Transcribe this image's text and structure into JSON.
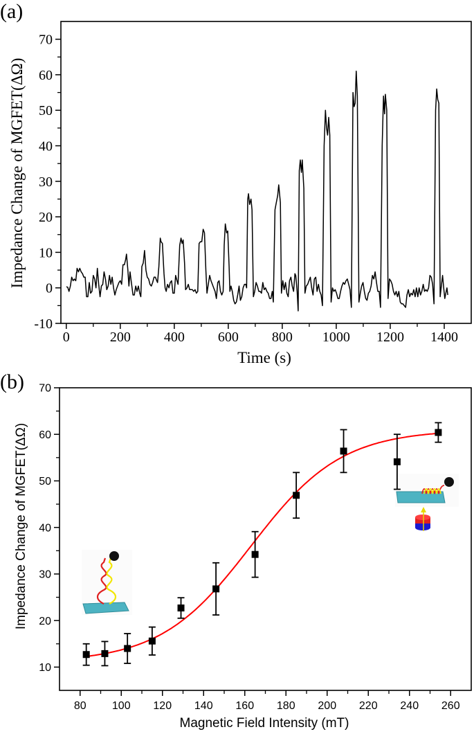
{
  "chart_data": [
    {
      "panel_label": "(a)",
      "type": "line",
      "xlabel": "Time (s)",
      "ylabel": "Impedance Change of MGFET(ΔΩ)",
      "xlim": [
        -20,
        1500
      ],
      "ylim": [
        -10,
        75
      ],
      "xticks": [
        0,
        200,
        400,
        600,
        800,
        1000,
        1200,
        1400
      ],
      "yticks": [
        -10,
        0,
        10,
        20,
        30,
        40,
        50,
        60,
        70
      ],
      "grid": false,
      "line_color": "#000000",
      "points": [
        [
          0,
          0.3
        ],
        [
          5,
          0.2
        ],
        [
          10,
          -1
        ],
        [
          15,
          0.5
        ],
        [
          20,
          3
        ],
        [
          25,
          2
        ],
        [
          30,
          2.5
        ],
        [
          35,
          2
        ],
        [
          40,
          5.5
        ],
        [
          45,
          4.5
        ],
        [
          50,
          5.5
        ],
        [
          55,
          4.5
        ],
        [
          60,
          4
        ],
        [
          65,
          3
        ],
        [
          70,
          3
        ],
        [
          75,
          -2.5
        ],
        [
          80,
          -2.5
        ],
        [
          85,
          1.5
        ],
        [
          90,
          -1.5
        ],
        [
          95,
          -1
        ],
        [
          100,
          3.5
        ],
        [
          105,
          2.5
        ],
        [
          110,
          0
        ],
        [
          115,
          5.5
        ],
        [
          120,
          1
        ],
        [
          125,
          -2.5
        ],
        [
          130,
          0.5
        ],
        [
          135,
          1
        ],
        [
          140,
          4.5
        ],
        [
          145,
          2.5
        ],
        [
          150,
          -0.5
        ],
        [
          155,
          0.5
        ],
        [
          160,
          3.5
        ],
        [
          165,
          1
        ],
        [
          170,
          3
        ],
        [
          175,
          0
        ],
        [
          180,
          -2
        ],
        [
          185,
          -0.5
        ],
        [
          190,
          0.5
        ],
        [
          195,
          1.5
        ],
        [
          200,
          2
        ],
        [
          205,
          1
        ],
        [
          210,
          6.5
        ],
        [
          215,
          6.5
        ],
        [
          220,
          8
        ],
        [
          223,
          9.5
        ],
        [
          228,
          5
        ],
        [
          232,
          0.5
        ],
        [
          236,
          4.5
        ],
        [
          242,
          1
        ],
        [
          247,
          -2
        ],
        [
          252,
          -2
        ],
        [
          257,
          0.5
        ],
        [
          262,
          -1
        ],
        [
          267,
          0.5
        ],
        [
          272,
          -1.5
        ],
        [
          276,
          -2.5
        ],
        [
          280,
          6
        ],
        [
          285,
          7
        ],
        [
          290,
          10.5
        ],
        [
          295,
          5
        ],
        [
          300,
          3
        ],
        [
          305,
          2.5
        ],
        [
          310,
          1
        ],
        [
          315,
          0.5
        ],
        [
          320,
          1.5
        ],
        [
          325,
          3
        ],
        [
          330,
          3
        ],
        [
          335,
          2
        ],
        [
          338,
          1.5
        ],
        [
          343,
          6
        ],
        [
          348,
          14
        ],
        [
          351,
          13
        ],
        [
          356,
          12.5
        ],
        [
          362,
          4
        ],
        [
          366,
          0
        ],
        [
          370,
          -1
        ],
        [
          375,
          1
        ],
        [
          380,
          0
        ],
        [
          385,
          1.5
        ],
        [
          390,
          2
        ],
        [
          395,
          -1.5
        ],
        [
          400,
          -1.5
        ],
        [
          405,
          3.5
        ],
        [
          410,
          2
        ],
        [
          414,
          1
        ],
        [
          420,
          12
        ],
        [
          425,
          14
        ],
        [
          429,
          12.5
        ],
        [
          433,
          13.5
        ],
        [
          438,
          7
        ],
        [
          442,
          -0.5
        ],
        [
          447,
          0
        ],
        [
          452,
          1
        ],
        [
          457,
          -0.5
        ],
        [
          462,
          -0.5
        ],
        [
          467,
          -0.5
        ],
        [
          472,
          -1
        ],
        [
          477,
          -0.5
        ],
        [
          482,
          -1.5
        ],
        [
          487,
          -1
        ],
        [
          492,
          12.5
        ],
        [
          497,
          13
        ],
        [
          502,
          13
        ],
        [
          507,
          16.5
        ],
        [
          512,
          15.5
        ],
        [
          517,
          5
        ],
        [
          521,
          -1.5
        ],
        [
          526,
          1
        ],
        [
          531,
          3.5
        ],
        [
          536,
          2
        ],
        [
          541,
          1
        ],
        [
          546,
          0
        ],
        [
          551,
          -1
        ],
        [
          556,
          -3
        ],
        [
          561,
          1.5
        ],
        [
          566,
          2
        ],
        [
          571,
          -1
        ],
        [
          576,
          -2
        ],
        [
          581,
          -1
        ],
        [
          585,
          12
        ],
        [
          589,
          18
        ],
        [
          594,
          15.5
        ],
        [
          598,
          16
        ],
        [
          603,
          6
        ],
        [
          606,
          -1
        ],
        [
          610,
          0.5
        ],
        [
          615,
          -1
        ],
        [
          620,
          -3.5
        ],
        [
          625,
          -4.5
        ],
        [
          630,
          -4
        ],
        [
          635,
          -2
        ],
        [
          640,
          0.5
        ],
        [
          645,
          -3.5
        ],
        [
          650,
          -2.5
        ],
        [
          655,
          0
        ],
        [
          660,
          1
        ],
        [
          665,
          1
        ],
        [
          668,
          0
        ],
        [
          672,
          25
        ],
        [
          675,
          26.5
        ],
        [
          679,
          23.5
        ],
        [
          684,
          25
        ],
        [
          688,
          22
        ],
        [
          693,
          -2.5
        ],
        [
          698,
          -1
        ],
        [
          703,
          1.5
        ],
        [
          708,
          0.5
        ],
        [
          713,
          -1
        ],
        [
          718,
          -1
        ],
        [
          723,
          -1.5
        ],
        [
          728,
          1.5
        ],
        [
          733,
          -0.5
        ],
        [
          738,
          0
        ],
        [
          743,
          -1
        ],
        [
          748,
          -1.5
        ],
        [
          753,
          -3
        ],
        [
          758,
          -3
        ],
        [
          763,
          -1
        ],
        [
          767,
          -4
        ],
        [
          773,
          22
        ],
        [
          778,
          24
        ],
        [
          783,
          26
        ],
        [
          787,
          29
        ],
        [
          793,
          24
        ],
        [
          797,
          -1.5
        ],
        [
          802,
          2
        ],
        [
          807,
          -0.5
        ],
        [
          812,
          1.5
        ],
        [
          817,
          -1.5
        ],
        [
          822,
          -2.5
        ],
        [
          827,
          2
        ],
        [
          832,
          3
        ],
        [
          837,
          0.5
        ],
        [
          842,
          -1
        ],
        [
          847,
          4
        ],
        [
          850,
          3.5
        ],
        [
          855,
          -1
        ],
        [
          859,
          -6.5
        ],
        [
          863,
          33
        ],
        [
          867,
          36
        ],
        [
          871,
          32.5
        ],
        [
          874,
          36
        ],
        [
          880,
          28
        ],
        [
          884,
          -1.5
        ],
        [
          889,
          0.5
        ],
        [
          894,
          1
        ],
        [
          899,
          2
        ],
        [
          904,
          3
        ],
        [
          909,
          0
        ],
        [
          914,
          -2
        ],
        [
          919,
          2.5
        ],
        [
          924,
          3
        ],
        [
          929,
          -1
        ],
        [
          934,
          1
        ],
        [
          939,
          -1
        ],
        [
          944,
          -2
        ],
        [
          949,
          -5
        ],
        [
          955,
          40
        ],
        [
          960,
          50
        ],
        [
          964,
          45
        ],
        [
          968,
          43
        ],
        [
          972,
          48
        ],
        [
          976,
          43
        ],
        [
          981,
          -4
        ],
        [
          986,
          0
        ],
        [
          991,
          -1
        ],
        [
          996,
          -0.5
        ],
        [
          1001,
          -1.5
        ],
        [
          1006,
          -3
        ],
        [
          1011,
          -3
        ],
        [
          1016,
          -1
        ],
        [
          1021,
          0.5
        ],
        [
          1026,
          1.5
        ],
        [
          1031,
          1
        ],
        [
          1036,
          2
        ],
        [
          1041,
          2.5
        ],
        [
          1046,
          1
        ],
        [
          1051,
          -0.5
        ],
        [
          1056,
          -5.5
        ],
        [
          1062,
          55
        ],
        [
          1066,
          51
        ],
        [
          1070,
          52
        ],
        [
          1074,
          61
        ],
        [
          1078,
          54
        ],
        [
          1084,
          -4
        ],
        [
          1089,
          -1.5
        ],
        [
          1094,
          0.5
        ],
        [
          1099,
          1.5
        ],
        [
          1104,
          -1
        ],
        [
          1109,
          -3
        ],
        [
          1114,
          -3.5
        ],
        [
          1119,
          -1.5
        ],
        [
          1124,
          -1
        ],
        [
          1129,
          0.5
        ],
        [
          1134,
          3.5
        ],
        [
          1139,
          2.5
        ],
        [
          1144,
          4.5
        ],
        [
          1149,
          1.5
        ],
        [
          1154,
          -1
        ],
        [
          1159,
          -1
        ],
        [
          1164,
          -5.5
        ],
        [
          1170,
          40
        ],
        [
          1175,
          54
        ],
        [
          1179,
          49
        ],
        [
          1182,
          54.5
        ],
        [
          1187,
          50
        ],
        [
          1192,
          -3
        ],
        [
          1197,
          2.5
        ],
        [
          1202,
          2
        ],
        [
          1207,
          1
        ],
        [
          1212,
          -1
        ],
        [
          1217,
          -2
        ],
        [
          1222,
          -1
        ],
        [
          1227,
          -2.5
        ],
        [
          1232,
          -1
        ],
        [
          1237,
          -4
        ],
        [
          1242,
          -4.5
        ],
        [
          1247,
          -4.5
        ],
        [
          1252,
          -5
        ],
        [
          1257,
          -5.5
        ],
        [
          1262,
          -2
        ],
        [
          1267,
          -0.5
        ],
        [
          1272,
          -2.5
        ],
        [
          1277,
          -1.5
        ],
        [
          1282,
          -2
        ],
        [
          1287,
          -0.5
        ],
        [
          1292,
          -2.5
        ],
        [
          1297,
          0
        ],
        [
          1302,
          -2.5
        ],
        [
          1307,
          0
        ],
        [
          1312,
          -2
        ],
        [
          1317,
          -1
        ],
        [
          1322,
          1
        ],
        [
          1327,
          -1
        ],
        [
          1332,
          -0.5
        ],
        [
          1337,
          -1
        ],
        [
          1342,
          0
        ],
        [
          1347,
          3.5
        ],
        [
          1352,
          3
        ],
        [
          1357,
          1
        ],
        [
          1362,
          -4.5
        ],
        [
          1368,
          50
        ],
        [
          1372,
          56
        ],
        [
          1376,
          53
        ],
        [
          1380,
          52
        ],
        [
          1385,
          -2.5
        ],
        [
          1390,
          1
        ],
        [
          1394,
          3.5
        ],
        [
          1398,
          0
        ],
        [
          1402,
          -3
        ],
        [
          1406,
          -1.5
        ],
        [
          1410,
          0
        ],
        [
          1413,
          -2
        ]
      ]
    },
    {
      "panel_label": "(b)",
      "type": "scatter",
      "xlabel": "Magnetic Field Intensity (mT)",
      "ylabel": "Impedance Change of MGFET(ΔΩ)",
      "xlim": [
        70,
        270
      ],
      "ylim": [
        5,
        70
      ],
      "xticks": [
        80,
        100,
        120,
        140,
        160,
        180,
        200,
        220,
        240,
        260
      ],
      "yticks": [
        10,
        20,
        30,
        40,
        50,
        60,
        70
      ],
      "grid": false,
      "marker_color": "#000000",
      "fit_color": "#ff0000",
      "x": [
        83,
        92,
        103,
        115,
        129,
        146,
        165,
        185,
        208,
        234,
        254
      ],
      "y": [
        12.7,
        12.9,
        14.0,
        15.6,
        22.7,
        26.8,
        34.2,
        46.9,
        56.4,
        54.1,
        60.4
      ],
      "error": [
        2.3,
        2.6,
        3.2,
        3.0,
        2.2,
        5.6,
        4.9,
        4.9,
        4.6,
        5.9,
        2.1
      ],
      "fit": {
        "model": "sigmoidal",
        "A1": 11,
        "A2": 61,
        "x0": 163,
        "dx": 22,
        "x_range": [
          83,
          254
        ]
      },
      "insets": [
        "dna-hairpin-upright-icon",
        "dna-hairpin-stretched-with-magnet-icon"
      ]
    }
  ]
}
